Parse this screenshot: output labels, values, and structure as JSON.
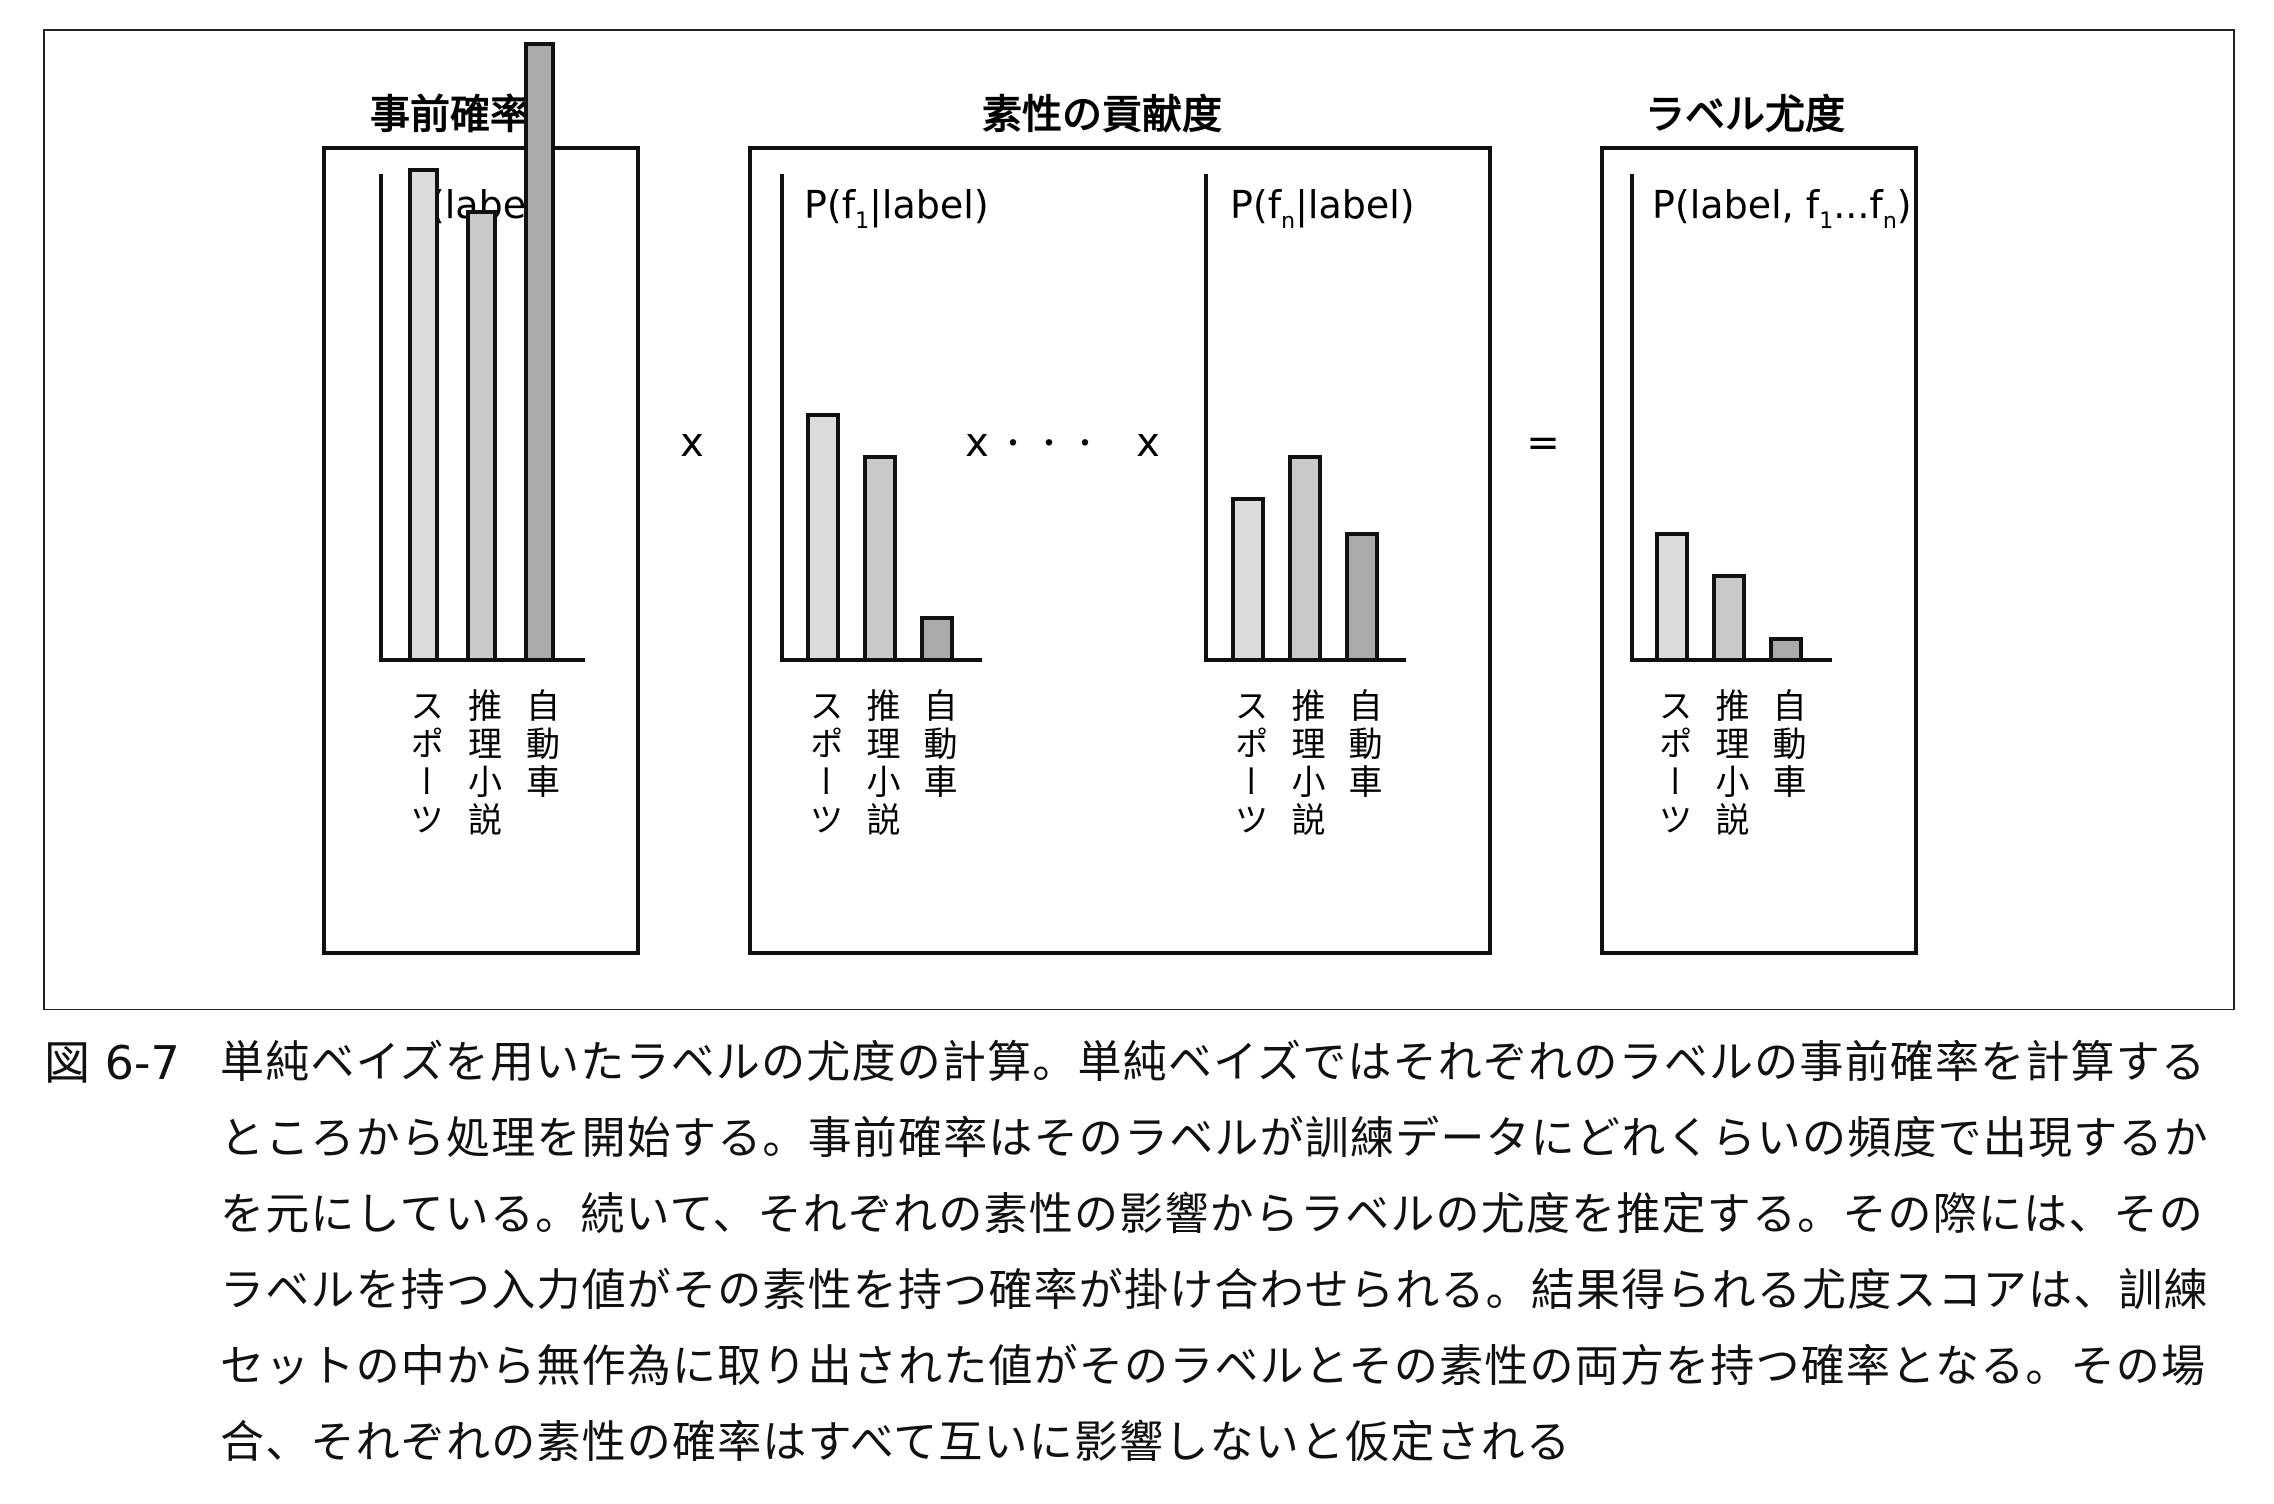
{
  "groups": [
    {
      "title": "事前確率"
    },
    {
      "title": "素性の貢献度"
    },
    {
      "title": "ラベル尤度"
    }
  ],
  "operators": [
    "x",
    "x",
    "・・・",
    "x",
    "="
  ],
  "panels": [
    {
      "label": {
        "base": "P(label)",
        "sub": "",
        "tail": ""
      },
      "values": [
        0.7,
        0.64,
        0.88
      ]
    },
    {
      "label": {
        "base": "P(f",
        "sub": "1",
        "tail": "|label)"
      },
      "values": [
        0.35,
        0.29,
        0.06
      ]
    },
    {
      "label": {
        "base": "P(f",
        "sub": "n",
        "tail": "|label)"
      },
      "values": [
        0.23,
        0.29,
        0.18
      ]
    },
    {
      "label": {
        "base": "P(label, f",
        "sub": "1",
        "mid": "...f",
        "sub2": "n",
        "tail": ")"
      },
      "values": [
        0.18,
        0.12,
        0.03
      ]
    }
  ],
  "categories": [
    "スポーツ",
    "推理小説",
    "自動車"
  ],
  "bar_colors": [
    "#dcdcdc",
    "#c9c9c9",
    "#aaaaaa"
  ],
  "caption": {
    "number": "図 6-7",
    "lines": [
      "単純ベイズを用いたラベルの尤度の計算。単純ベイズではそれぞれのラベルの事前確率を計算する",
      "ところから処理を開始する。事前確率はそのラベルが訓練データにどれくらいの頻度で出現するか",
      "を元にしている。続いて、それぞれの素性の影響からラベルの尤度を推定する。その際には、その",
      "ラベルを持つ入力値がその素性を持つ確率が掛け合わせられる。結果得られる尤度スコアは、訓練",
      "セットの中から無作為に取り出された値がそのラベルとその素性の両方を持つ確率となる。その場",
      "合、それぞれの素性の確率はすべて互いに影響しないと仮定される"
    ]
  }
}
